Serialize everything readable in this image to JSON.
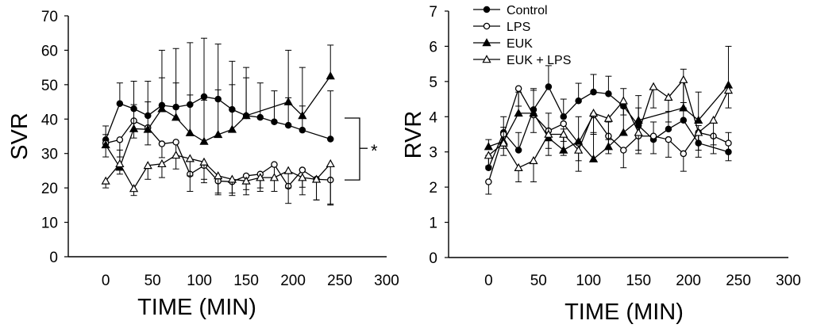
{
  "chart_data": [
    {
      "type": "line",
      "id": "svr",
      "ylabel": "SVR",
      "xlabel": "TIME (MIN)",
      "xlim": [
        -40,
        300
      ],
      "ylim": [
        0,
        70
      ],
      "xticks": [
        0,
        50,
        100,
        150,
        200,
        250,
        300
      ],
      "yticks": [
        0,
        10,
        20,
        30,
        40,
        50,
        60,
        70
      ],
      "annotation": "*",
      "series": [
        {
          "name": "Control",
          "marker": "circle-filled",
          "x": [
            0,
            15,
            30,
            45,
            60,
            75,
            90,
            105,
            120,
            135,
            150,
            165,
            180,
            195,
            210,
            240
          ],
          "y": [
            34,
            44.5,
            43,
            41,
            44,
            43.5,
            44.2,
            46.5,
            45.8,
            42.8,
            41,
            40.5,
            39.2,
            38.2,
            36.8,
            34.2
          ],
          "err": [
            4,
            6,
            8,
            10,
            16,
            17,
            18,
            17,
            16,
            14,
            11,
            10,
            9,
            8,
            7,
            14
          ]
        },
        {
          "name": "LPS",
          "marker": "circle-open",
          "x": [
            0,
            15,
            30,
            45,
            60,
            75,
            90,
            105,
            120,
            135,
            150,
            165,
            180,
            195,
            210,
            225,
            240
          ],
          "y": [
            33,
            34,
            39.5,
            37.5,
            32.8,
            33.3,
            24,
            26.5,
            22,
            21.8,
            23.5,
            24,
            26.8,
            20.5,
            25.2,
            22.5,
            22.3
          ],
          "err": [
            4,
            5,
            5,
            5,
            4,
            4,
            5,
            5,
            4,
            4,
            4,
            4,
            4,
            5,
            5,
            6,
            7
          ]
        },
        {
          "name": "EUK",
          "marker": "triangle-filled",
          "x": [
            0,
            15,
            30,
            45,
            60,
            75,
            90,
            105,
            120,
            135,
            150,
            195,
            210,
            240
          ],
          "y": [
            32.5,
            26,
            37.2,
            37,
            43,
            40.5,
            36,
            33.5,
            35.5,
            37,
            41,
            45,
            41,
            52.5
          ],
          "err": [
            3,
            5,
            7,
            8,
            9,
            10,
            11,
            12,
            13,
            13,
            14,
            15,
            14,
            9
          ]
        },
        {
          "name": "EUK + LPS",
          "marker": "triangle-open",
          "x": [
            0,
            15,
            30,
            45,
            60,
            75,
            90,
            105,
            120,
            135,
            150,
            165,
            180,
            195,
            210,
            225,
            240
          ],
          "y": [
            22,
            27,
            19.8,
            26.5,
            27,
            29.5,
            28.5,
            27.5,
            23.5,
            22.5,
            22,
            23,
            23,
            25,
            23,
            22.5,
            27
          ],
          "err": [
            2,
            3,
            2,
            4,
            4,
            4,
            5,
            5,
            5,
            4,
            4,
            4,
            4,
            5,
            5,
            6,
            12
          ]
        }
      ]
    },
    {
      "type": "line",
      "id": "rvr",
      "ylabel": "RVR",
      "xlabel": "TIME (MIN)",
      "xlim": [
        -40,
        300
      ],
      "ylim": [
        0,
        7
      ],
      "xticks": [
        0,
        50,
        100,
        150,
        200,
        250,
        300
      ],
      "yticks": [
        0,
        1,
        2,
        3,
        4,
        5,
        6,
        7
      ],
      "legend": "top-left",
      "series": [
        {
          "name": "Control",
          "marker": "circle-filled",
          "x": [
            0,
            15,
            30,
            45,
            60,
            75,
            90,
            105,
            120,
            135,
            150,
            165,
            180,
            195,
            210,
            240
          ],
          "y": [
            2.55,
            3.55,
            3.05,
            4.2,
            4.85,
            4,
            4.45,
            4.7,
            4.65,
            4.3,
            3.75,
            3.35,
            3.65,
            3.9,
            3.25,
            3
          ],
          "err": [
            0.35,
            0.45,
            0.5,
            0.55,
            0.6,
            0.5,
            0.5,
            0.5,
            0.5,
            0.5,
            0.5,
            0.5,
            0.5,
            0.5,
            0.5,
            0.55
          ]
        },
        {
          "name": "LPS",
          "marker": "circle-open",
          "x": [
            0,
            15,
            30,
            45,
            60,
            75,
            90,
            105,
            120,
            135,
            150,
            165,
            180,
            195,
            210,
            225,
            240
          ],
          "y": [
            2.15,
            3.5,
            4.8,
            4.05,
            3.6,
            3.8,
            3.25,
            4.05,
            3.45,
            3.05,
            3.45,
            3.45,
            3.35,
            2.95,
            3.55,
            3.45,
            3.25
          ],
          "err": [
            0.35,
            0.4,
            0.5,
            0.5,
            0.5,
            0.5,
            0.5,
            0.5,
            0.5,
            0.5,
            0.5,
            0.5,
            0.5,
            0.5,
            0.5,
            0.5,
            0.5
          ]
        },
        {
          "name": "EUK",
          "marker": "triangle-filled",
          "x": [
            0,
            15,
            30,
            45,
            60,
            75,
            90,
            105,
            120,
            135,
            150,
            195,
            210,
            240
          ],
          "y": [
            3.15,
            3.3,
            4.1,
            4.1,
            3.4,
            3.05,
            3.3,
            2.8,
            3.15,
            3.55,
            3.9,
            4.25,
            3.9,
            4.9
          ],
          "err": [
            0.2,
            0.4,
            0.6,
            0.7,
            0.7,
            0.6,
            0.7,
            0.7,
            0.7,
            0.7,
            0.7,
            1.1,
            0.8,
            1.1
          ]
        },
        {
          "name": "EUK + LPS",
          "marker": "triangle-open",
          "x": [
            0,
            15,
            30,
            45,
            60,
            75,
            90,
            105,
            120,
            135,
            150,
            165,
            180,
            195,
            210,
            225,
            240
          ],
          "y": [
            2.9,
            3.25,
            2.55,
            2.75,
            3.5,
            3.5,
            3.05,
            4.1,
            3.95,
            4.45,
            3.55,
            4.85,
            4.55,
            5.05,
            3.55,
            3.9,
            4.75
          ],
          "err": [
            0.3,
            0.35,
            0.4,
            0.6,
            0.6,
            0.6,
            0.6,
            0.6,
            0.6,
            0.4,
            0.5,
            0.6,
            0.7,
            0.8,
            0.7,
            0.7,
            0.5
          ]
        }
      ]
    }
  ]
}
